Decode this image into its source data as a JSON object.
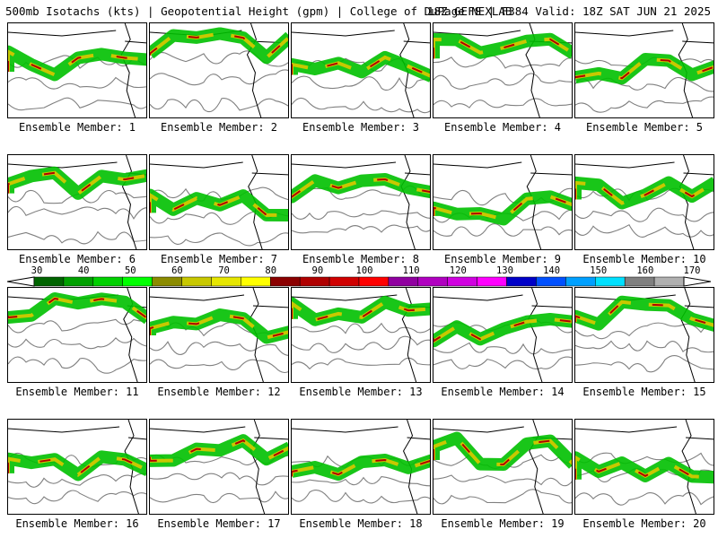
{
  "header": {
    "left": "500mb Isotachs (kts) | Geopotential Height (gpm) | College of DuPage NEXLAB",
    "right": "18Z GEFS | F384 Valid: 18Z SAT JUN 21 2025"
  },
  "panels": [
    {
      "label": "Ensemble Member: 1"
    },
    {
      "label": "Ensemble Member: 2"
    },
    {
      "label": "Ensemble Member: 3"
    },
    {
      "label": "Ensemble Member: 4"
    },
    {
      "label": "Ensemble Member: 5"
    },
    {
      "label": "Ensemble Member: 6"
    },
    {
      "label": "Ensemble Member: 7"
    },
    {
      "label": "Ensemble Member: 8"
    },
    {
      "label": "Ensemble Member: 9"
    },
    {
      "label": "Ensemble Member: 10"
    },
    {
      "label": "Ensemble Member: 11"
    },
    {
      "label": "Ensemble Member: 12"
    },
    {
      "label": "Ensemble Member: 13"
    },
    {
      "label": "Ensemble Member: 14"
    },
    {
      "label": "Ensemble Member: 15"
    },
    {
      "label": "Ensemble Member: 16"
    },
    {
      "label": "Ensemble Member: 17"
    },
    {
      "label": "Ensemble Member: 18"
    },
    {
      "label": "Ensemble Member: 19"
    },
    {
      "label": "Ensemble Member: 20"
    }
  ],
  "colorbar": {
    "labels": [
      "30",
      "40",
      "50",
      "60",
      "70",
      "80",
      "90",
      "100",
      "110",
      "120",
      "130",
      "140",
      "150",
      "160",
      "170"
    ],
    "colors": [
      "#006400",
      "#00a000",
      "#00d000",
      "#00ff00",
      "#8c8c00",
      "#c8c800",
      "#e6e600",
      "#ffff00",
      "#8b0000",
      "#b00000",
      "#d00000",
      "#ff0000",
      "#9000a0",
      "#b000c0",
      "#d000e0",
      "#ff00ff",
      "#0000c8",
      "#0050ff",
      "#00a0ff",
      "#00e0ff",
      "#808080",
      "#b0b0b0"
    ]
  },
  "colors": {
    "jet_low": "#00c000",
    "jet_mid": "#c8c800",
    "jet_high": "#b00000",
    "height": "#808080",
    "border": "#000000"
  }
}
